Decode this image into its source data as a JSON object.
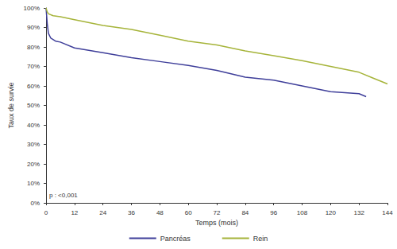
{
  "chart_data": {
    "type": "line",
    "x_label": "Temps (mois)",
    "y_label": "Taux de survie",
    "annotation": "p : <0,001",
    "xlim": [
      0,
      144
    ],
    "xticks": [
      0,
      12,
      24,
      36,
      48,
      60,
      72,
      84,
      96,
      108,
      120,
      132,
      144
    ],
    "ylim": [
      0,
      100
    ],
    "yticks": [
      {
        "value": 0,
        "label": "0%"
      },
      {
        "value": 10,
        "label": "10%"
      },
      {
        "value": 20,
        "label": "20%"
      },
      {
        "value": 30,
        "label": "30%"
      },
      {
        "value": 40,
        "label": "40%"
      },
      {
        "value": 50,
        "label": "50%"
      },
      {
        "value": 60,
        "label": "60%"
      },
      {
        "value": 70,
        "label": "70%"
      },
      {
        "value": 80,
        "label": "80%"
      },
      {
        "value": 90,
        "label": "90%"
      },
      {
        "value": 100,
        "label": "100%"
      }
    ],
    "grid": false,
    "legend": "bottom",
    "series": [
      {
        "name": "Pancréas",
        "color": "#3f3f9a",
        "x": [
          0,
          0.5,
          1,
          2,
          4,
          6,
          12,
          24,
          36,
          48,
          60,
          72,
          84,
          96,
          108,
          120,
          132,
          135
        ],
        "values": [
          100,
          92,
          87,
          84.5,
          83,
          82.5,
          79.5,
          77,
          74.5,
          72.5,
          70.5,
          68,
          64.5,
          63,
          60,
          57,
          56,
          54.5
        ]
      },
      {
        "name": "Rein",
        "color": "#a6b43a",
        "x": [
          0,
          0.5,
          1,
          3,
          6,
          12,
          24,
          36,
          48,
          60,
          72,
          84,
          96,
          108,
          120,
          132,
          138,
          144
        ],
        "values": [
          100,
          98,
          97,
          96,
          95.5,
          94,
          91,
          89,
          86,
          83,
          81,
          78,
          75.5,
          73,
          70,
          67,
          64,
          61
        ]
      }
    ]
  }
}
